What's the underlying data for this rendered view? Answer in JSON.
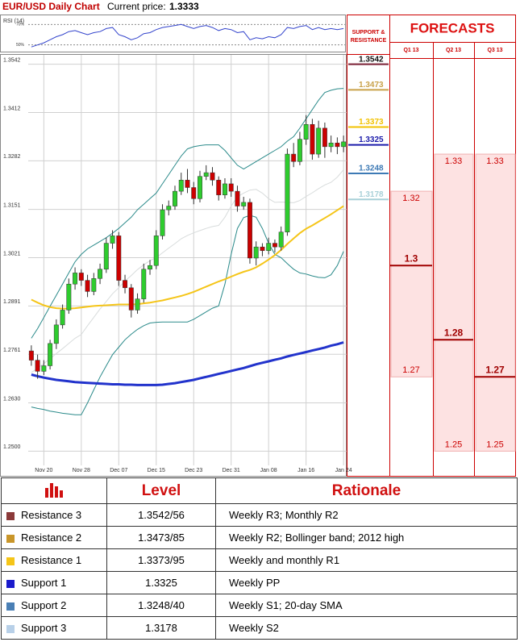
{
  "chart_data": {
    "type": "candlestick",
    "title": "EUR/USD Daily Chart",
    "price_label": "Current price:",
    "current_price": 1.3333,
    "categories": [
      "",
      "",
      "Nov 20",
      "",
      "",
      "",
      "",
      "",
      "Nov 28",
      "",
      "",
      "",
      "",
      "",
      "Dec 07",
      "",
      "",
      "",
      "",
      "",
      "Dec 15",
      "",
      "",
      "",
      "",
      "",
      "Dec 23",
      "",
      "",
      "",
      "",
      "",
      "Dec 31",
      "",
      "",
      "",
      "",
      "",
      "Jan 08",
      "",
      "",
      "",
      "",
      "",
      "Jan 16",
      "",
      "",
      "",
      "",
      "",
      "Jan 24"
    ],
    "open": [
      1.277,
      1.2745,
      1.2715,
      1.273,
      1.279,
      1.284,
      1.288,
      1.295,
      1.298,
      1.296,
      1.293,
      1.2965,
      1.299,
      1.306,
      1.308,
      1.296,
      1.294,
      1.288,
      1.291,
      1.299,
      1.3,
      1.308,
      1.315,
      1.316,
      1.32,
      1.323,
      1.321,
      1.318,
      1.324,
      1.325,
      1.323,
      1.319,
      1.322,
      1.32,
      1.316,
      1.317,
      1.302,
      1.305,
      1.304,
      1.306,
      1.305,
      1.309,
      1.33,
      1.328,
      1.334,
      1.338,
      1.33,
      1.337,
      1.332,
      1.333,
      1.332
    ],
    "high": [
      1.2785,
      1.276,
      1.2745,
      1.28,
      1.2855,
      1.2895,
      1.2965,
      1.2995,
      1.299,
      1.2975,
      1.298,
      1.3005,
      1.3075,
      1.3095,
      1.309,
      1.2975,
      1.295,
      1.2925,
      1.3005,
      1.3015,
      1.3095,
      1.3165,
      1.3175,
      1.3215,
      1.325,
      1.326,
      1.3225,
      1.3255,
      1.327,
      1.3265,
      1.324,
      1.3235,
      1.3235,
      1.3215,
      1.3185,
      1.318,
      1.3065,
      1.306,
      1.3075,
      1.307,
      1.3105,
      1.3315,
      1.333,
      1.336,
      1.3405,
      1.3395,
      1.339,
      1.3385,
      1.335,
      1.3345,
      1.335
    ],
    "low": [
      1.273,
      1.2695,
      1.2705,
      1.272,
      1.2775,
      1.283,
      1.287,
      1.2935,
      1.2945,
      1.2915,
      1.292,
      1.295,
      1.298,
      1.3045,
      1.2945,
      1.2925,
      1.286,
      1.287,
      1.29,
      1.2975,
      1.299,
      1.307,
      1.3135,
      1.315,
      1.319,
      1.3195,
      1.3165,
      1.317,
      1.323,
      1.3215,
      1.3175,
      1.318,
      1.3185,
      1.3145,
      1.315,
      1.3005,
      1.3,
      1.3025,
      1.303,
      1.3035,
      1.304,
      1.308,
      1.3265,
      1.327,
      1.3325,
      1.3285,
      1.329,
      1.329,
      1.3305,
      1.33,
      1.3305
    ],
    "close": [
      1.2745,
      1.2715,
      1.273,
      1.279,
      1.284,
      1.288,
      1.295,
      1.298,
      1.296,
      1.293,
      1.2965,
      1.299,
      1.306,
      1.308,
      1.296,
      1.294,
      1.288,
      1.291,
      1.299,
      1.3,
      1.308,
      1.315,
      1.316,
      1.32,
      1.323,
      1.321,
      1.318,
      1.324,
      1.325,
      1.323,
      1.319,
      1.322,
      1.32,
      1.316,
      1.317,
      1.302,
      1.305,
      1.304,
      1.306,
      1.305,
      1.309,
      1.33,
      1.328,
      1.334,
      1.338,
      1.33,
      1.337,
      1.332,
      1.333,
      1.332,
      1.3333
    ],
    "up_color": "#2ecc2e",
    "down_color": "#cc0000",
    "indicators": [
      {
        "color": "#2a8a8a",
        "width": 1,
        "values": [
          1.2804,
          1.283,
          1.286,
          1.289,
          1.292,
          1.295,
          1.298,
          1.301,
          1.303,
          1.3045,
          1.3055,
          1.3065,
          1.3075,
          1.3087,
          1.31,
          1.3115,
          1.313,
          1.315,
          1.3165,
          1.318,
          1.3195,
          1.322,
          1.3245,
          1.327,
          1.3295,
          1.3314,
          1.332,
          1.3323,
          1.3325,
          1.3325,
          1.3325,
          1.331,
          1.329,
          1.327,
          1.326,
          1.327,
          1.328,
          1.329,
          1.33,
          1.331,
          1.332,
          1.3335,
          1.3347,
          1.337,
          1.3395,
          1.342,
          1.3445,
          1.3466,
          1.3472,
          1.3476,
          1.3477
        ]
      },
      {
        "color": "#2a8a8a",
        "width": 1,
        "values": [
          1.2619,
          1.2615,
          1.2612,
          1.2608,
          1.2605,
          1.2602,
          1.26,
          1.2598,
          1.2598,
          1.263,
          1.2665,
          1.27,
          1.273,
          1.276,
          1.278,
          1.28,
          1.2815,
          1.2828,
          1.2838,
          1.2845,
          1.2847,
          1.2848,
          1.2848,
          1.2848,
          1.2848,
          1.2848,
          1.2855,
          1.2865,
          1.2875,
          1.2885,
          1.2891,
          1.295,
          1.303,
          1.31,
          1.3129,
          1.3135,
          1.313,
          1.31,
          1.306,
          1.303,
          1.3021,
          1.3005,
          1.299,
          1.298,
          1.2977,
          1.2972,
          1.2968,
          1.2967,
          1.2975,
          1.3,
          1.3038
        ]
      },
      {
        "color": "#d8dcdc",
        "width": 1,
        "values": [
          1.2712,
          1.2723,
          1.2736,
          1.2749,
          1.2763,
          1.2776,
          1.279,
          1.2804,
          1.2814,
          1.2838,
          1.286,
          1.2883,
          1.2903,
          1.2924,
          1.294,
          1.2958,
          1.2973,
          1.2989,
          1.3002,
          1.3013,
          1.3021,
          1.3034,
          1.3047,
          1.3059,
          1.3072,
          1.3081,
          1.3088,
          1.3094,
          1.31,
          1.3105,
          1.3108,
          1.313,
          1.316,
          1.3185,
          1.3195,
          1.3203,
          1.3205,
          1.3195,
          1.318,
          1.317,
          1.3171,
          1.317,
          1.3169,
          1.3175,
          1.3186,
          1.3196,
          1.3207,
          1.3217,
          1.3224,
          1.3238,
          1.3258
        ]
      },
      {
        "color": "#f5c518",
        "width": 2,
        "values": [
          1.2908,
          1.29,
          1.2893,
          1.2888,
          1.2885,
          1.2884,
          1.2884,
          1.2885,
          1.2887,
          1.2889,
          1.2891,
          1.2892,
          1.2893,
          1.2894,
          1.2895,
          1.2895,
          1.2895,
          1.2896,
          1.2898,
          1.29,
          1.2903,
          1.2906,
          1.291,
          1.2914,
          1.2918,
          1.2923,
          1.2929,
          1.2936,
          1.2943,
          1.295,
          1.2957,
          1.2963,
          1.297,
          1.2977,
          1.2983,
          1.2988,
          1.2995,
          1.3005,
          1.3016,
          1.3028,
          1.3042,
          1.3058,
          1.3073,
          1.3087,
          1.3099,
          1.3108,
          1.3118,
          1.3128,
          1.3138,
          1.3149,
          1.316
        ]
      },
      {
        "color": "#2233cc",
        "width": 3,
        "values": [
          1.2706,
          1.2702,
          1.2698,
          1.2695,
          1.2692,
          1.269,
          1.2688,
          1.2686,
          1.2685,
          1.2684,
          1.2683,
          1.2682,
          1.2681,
          1.268,
          1.268,
          1.2679,
          1.2679,
          1.2678,
          1.2678,
          1.2678,
          1.2678,
          1.2679,
          1.2681,
          1.2683,
          1.2686,
          1.2689,
          1.2692,
          1.2696,
          1.27,
          1.2704,
          1.2708,
          1.2712,
          1.2716,
          1.272,
          1.2724,
          1.2729,
          1.2734,
          1.2738,
          1.2742,
          1.2746,
          1.275,
          1.2755,
          1.2759,
          1.2763,
          1.2767,
          1.2771,
          1.2775,
          1.2779,
          1.2784,
          1.2788,
          1.2793
        ]
      }
    ],
    "ylim": [
      1.244,
      1.3563
    ],
    "yticks": [
      {
        "value": 1.25,
        "label": "1.2500"
      },
      {
        "value": 1.263,
        "label": "1.2630"
      },
      1.2761,
      1.2891,
      1.3021,
      1.3151,
      1.3282,
      1.3412,
      1.3542
    ],
    "grid": true,
    "rsi": {
      "label": "RSI (14)",
      "color": "#3344cc",
      "ylim": [
        45,
        75
      ],
      "yticks": [
        {
          "value": 70,
          "label": "70%"
        },
        {
          "value": 50,
          "label": "50%"
        }
      ],
      "values": [
        48,
        50,
        52,
        55,
        58,
        60,
        63,
        64,
        62,
        60,
        62,
        63,
        66,
        67,
        60,
        58,
        55,
        57,
        61,
        62,
        65,
        67,
        68,
        69,
        70,
        68,
        66,
        68,
        69,
        67,
        64,
        66,
        65,
        62,
        63,
        55,
        57,
        56,
        58,
        57,
        60,
        67,
        66,
        68,
        69,
        65,
        67,
        65,
        66,
        65,
        66
      ]
    },
    "levels": {
      "header": [
        "SUPPORT &",
        "RESISTANCE"
      ],
      "values": [
        1.3542,
        1.3473,
        1.3373,
        1.3325,
        1.3248,
        1.3178
      ],
      "colors": [
        "#7a2035",
        "#c9a24a",
        "#f2c200",
        "#1a1aaa",
        "#3d7ab5",
        "#a8d0d8"
      ]
    },
    "forecasts": {
      "title": "FORECASTS",
      "categories": [
        "Q1 13",
        "Q2 13",
        "Q3 13"
      ],
      "high": [
        1.32,
        1.33,
        1.33
      ],
      "mid": [
        1.3,
        1.28,
        1.27
      ],
      "low": [
        1.27,
        1.25,
        1.25
      ],
      "color": "#cc0000",
      "fill": "#fde2e2"
    }
  },
  "table": {
    "header": [
      "Level",
      "Rationale"
    ],
    "rows": [
      {
        "name": "Resistance 3",
        "level": "1.3542/56",
        "rationale": "Weekly R3; Monthly R2",
        "color": "#8b3a3a"
      },
      {
        "name": "Resistance 2",
        "level": "1.3473/85",
        "rationale": "Weekly R2; Bollinger band; 2012 high",
        "color": "#c9962a"
      },
      {
        "name": "Resistance 1",
        "level": "1.3373/95",
        "rationale": "Weekly and monthly R1",
        "color": "#f5c518"
      },
      {
        "name": "Support 1",
        "level": "1.3325",
        "rationale": "Weekly PP",
        "color": "#1a1acc"
      },
      {
        "name": "Support 2",
        "level": "1.3248/40",
        "rationale": "Weekly S1; 20-day SMA",
        "color": "#4a7fb5"
      },
      {
        "name": "Support 3",
        "level": "1.3178",
        "rationale": "Weekly S2",
        "color": "#b8d0e8"
      }
    ]
  }
}
